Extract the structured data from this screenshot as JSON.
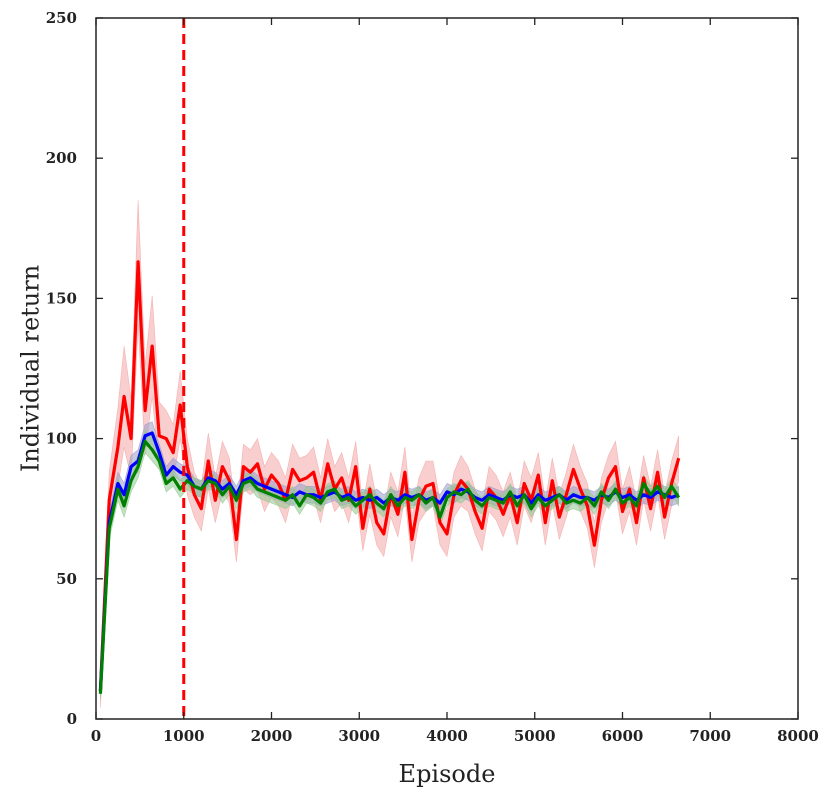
{
  "chart_data": {
    "type": "line",
    "xlabel": "Episode",
    "ylabel": "Individual return",
    "xlim": [
      0,
      8000
    ],
    "ylim": [
      0,
      250
    ],
    "x_ticks": [
      "0",
      "1000",
      "2000",
      "3000",
      "4000",
      "5000",
      "6000",
      "7000",
      "8000"
    ],
    "y_ticks": [
      "0",
      "50",
      "100",
      "150",
      "200",
      "250"
    ],
    "grid": false,
    "legend": "none",
    "vertical_marker": {
      "x": 1000,
      "color": "#ff0000",
      "style": "dashed"
    },
    "x": [
      50,
      150,
      250,
      320,
      400,
      480,
      560,
      640,
      720,
      800,
      880,
      960,
      1040,
      1120,
      1200,
      1280,
      1360,
      1440,
      1520,
      1600,
      1680,
      1760,
      1840,
      1920,
      2000,
      2080,
      2160,
      2240,
      2320,
      2400,
      2480,
      2560,
      2640,
      2720,
      2800,
      2880,
      2960,
      3040,
      3120,
      3200,
      3280,
      3360,
      3440,
      3520,
      3600,
      3680,
      3760,
      3840,
      3920,
      4000,
      4080,
      4160,
      4240,
      4320,
      4400,
      4480,
      4560,
      4640,
      4720,
      4800,
      4880,
      4960,
      5040,
      5120,
      5200,
      5280,
      5360,
      5440,
      5520,
      5600,
      5680,
      5760,
      5840,
      5920,
      6000,
      6080,
      6160,
      6240,
      6320,
      6400,
      6480,
      6560,
      6640
    ],
    "series": [
      {
        "color": "#ff0000",
        "band_color": "#f4a5a5",
        "values": [
          10,
          78,
          97,
          115,
          100,
          163,
          110,
          133,
          101,
          100,
          95,
          112,
          90,
          80,
          75,
          92,
          78,
          90,
          85,
          64,
          90,
          88,
          91,
          82,
          87,
          84,
          78,
          89,
          85,
          86,
          88,
          78,
          91,
          82,
          86,
          78,
          90,
          68,
          82,
          70,
          66,
          80,
          73,
          88,
          64,
          78,
          83,
          84,
          70,
          66,
          80,
          85,
          82,
          74,
          68,
          82,
          79,
          73,
          80,
          70,
          84,
          78,
          87,
          70,
          85,
          72,
          80,
          89,
          82,
          76,
          62,
          78,
          86,
          90,
          74,
          82,
          70,
          86,
          75,
          88,
          72,
          84,
          93
        ],
        "band": [
          6,
          10,
          14,
          18,
          14,
          22,
          16,
          18,
          12,
          10,
          10,
          12,
          10,
          8,
          8,
          10,
          8,
          9,
          8,
          8,
          8,
          8,
          9,
          8,
          8,
          8,
          8,
          9,
          8,
          8,
          9,
          8,
          9,
          8,
          9,
          8,
          9,
          8,
          9,
          8,
          8,
          8,
          8,
          9,
          8,
          8,
          9,
          8,
          8,
          8,
          8,
          9,
          8,
          8,
          8,
          8,
          8,
          8,
          8,
          8,
          8,
          8,
          8,
          8,
          8,
          8,
          8,
          9,
          8,
          8,
          8,
          8,
          8,
          9,
          8,
          8,
          8,
          8,
          8,
          8,
          8,
          8,
          8
        ]
      },
      {
        "color": "#0000ff",
        "band_color": "#9a9ac8",
        "values": [
          10,
          70,
          84,
          80,
          90,
          92,
          101,
          102,
          95,
          87,
          90,
          88,
          87,
          83,
          82,
          86,
          85,
          82,
          84,
          80,
          85,
          86,
          84,
          83,
          82,
          81,
          80,
          79,
          81,
          80,
          80,
          79,
          80,
          81,
          79,
          80,
          78,
          79,
          78,
          79,
          77,
          79,
          78,
          80,
          79,
          80,
          78,
          79,
          77,
          81,
          80,
          82,
          81,
          79,
          78,
          80,
          79,
          78,
          80,
          79,
          80,
          77,
          80,
          78,
          79,
          80,
          78,
          80,
          79,
          79,
          78,
          80,
          79,
          81,
          79,
          80,
          78,
          80,
          79,
          81,
          80,
          79,
          80
        ],
        "band": [
          2,
          4,
          4,
          4,
          4,
          4,
          4,
          4,
          3,
          3,
          3,
          3,
          3,
          3,
          3,
          3,
          3,
          3,
          3,
          3,
          3,
          3,
          3,
          3,
          3,
          3,
          3,
          3,
          3,
          3,
          3,
          3,
          3,
          3,
          3,
          3,
          3,
          3,
          3,
          3,
          3,
          3,
          3,
          3,
          3,
          3,
          3,
          3,
          3,
          3,
          3,
          3,
          3,
          3,
          3,
          3,
          3,
          3,
          3,
          3,
          3,
          3,
          3,
          3,
          3,
          3,
          3,
          3,
          3,
          3,
          3,
          3,
          3,
          3,
          3,
          3,
          3,
          3,
          3,
          3,
          3,
          3,
          3
        ]
      },
      {
        "color": "#008000",
        "band_color": "#8fc98f",
        "values": [
          9,
          68,
          82,
          76,
          85,
          90,
          99,
          96,
          92,
          84,
          86,
          82,
          85,
          83,
          82,
          85,
          84,
          80,
          83,
          78,
          84,
          85,
          82,
          81,
          80,
          79,
          78,
          80,
          76,
          80,
          79,
          77,
          81,
          82,
          78,
          79,
          76,
          78,
          80,
          77,
          75,
          80,
          76,
          79,
          78,
          80,
          77,
          79,
          72,
          79,
          81,
          80,
          82,
          78,
          76,
          79,
          78,
          77,
          81,
          76,
          80,
          75,
          79,
          76,
          78,
          80,
          77,
          78,
          77,
          79,
          76,
          81,
          78,
          82,
          77,
          79,
          76,
          84,
          80,
          83,
          79,
          83,
          79
        ],
        "band": [
          2,
          4,
          4,
          4,
          4,
          4,
          4,
          4,
          3,
          3,
          3,
          3,
          3,
          3,
          3,
          3,
          3,
          3,
          3,
          3,
          3,
          3,
          3,
          3,
          3,
          3,
          3,
          3,
          3,
          3,
          3,
          3,
          3,
          3,
          3,
          3,
          3,
          3,
          3,
          3,
          3,
          3,
          3,
          3,
          3,
          3,
          3,
          3,
          3,
          3,
          3,
          3,
          3,
          3,
          3,
          3,
          3,
          3,
          3,
          3,
          3,
          3,
          3,
          3,
          3,
          3,
          3,
          3,
          3,
          3,
          3,
          3,
          3,
          3,
          3,
          3,
          3,
          3,
          3,
          3,
          3,
          3,
          3
        ]
      }
    ]
  }
}
